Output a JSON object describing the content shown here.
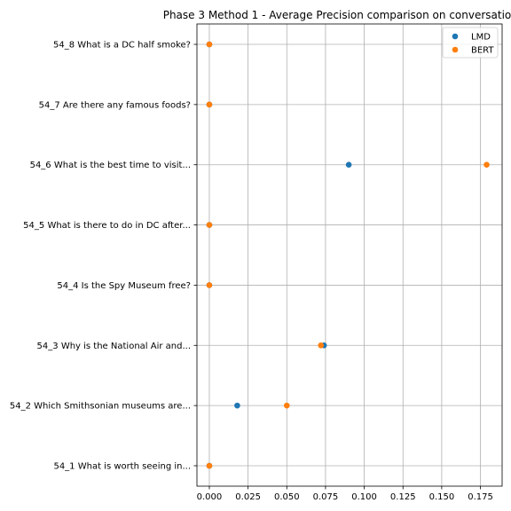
{
  "chart_data": {
    "type": "scatter",
    "title": "Phase 3 Method 1 - Average Precision comparison on conversatio",
    "xlabel": "",
    "ylabel": "",
    "xlim": [
      -0.008,
      0.189
    ],
    "x_ticks": [
      "0.000",
      "0.025",
      "0.050",
      "0.075",
      "0.100",
      "0.125",
      "0.150",
      "0.175"
    ],
    "x_tick_values": [
      0,
      0.025,
      0.05,
      0.075,
      0.1,
      0.125,
      0.15,
      0.175
    ],
    "categories": [
      "54_1 What is worth seeing in...",
      "54_2 Which Smithsonian museums are...",
      "54_3 Why is the National Air and...",
      "54_4 Is the Spy Museum free?",
      "54_5 What is there to do in DC after...",
      "54_6 What is the best time to visit...",
      "54_7 Are there any famous foods?",
      "54_8 What is a DC half smoke?"
    ],
    "series": [
      {
        "name": "LMD",
        "color": "#1f77b4",
        "values": [
          0,
          0.018,
          0.074,
          0,
          0,
          0.09,
          0,
          0
        ]
      },
      {
        "name": "BERT",
        "color": "#ff7f0e",
        "values": [
          0,
          0.05,
          0.072,
          0,
          0,
          0.179,
          0,
          0
        ]
      }
    ],
    "grid": true,
    "legend_position": "top-right"
  }
}
